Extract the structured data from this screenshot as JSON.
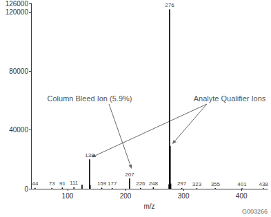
{
  "chart_data": {
    "type": "bar",
    "x_label": "m/z",
    "x": [
      44,
      73,
      91,
      111,
      125,
      138,
      139,
      159,
      177,
      207,
      226,
      248,
      275,
      276,
      277,
      278,
      297,
      323,
      355,
      401,
      438
    ],
    "values": [
      600,
      500,
      800,
      1000,
      2800,
      20000,
      2500,
      700,
      500,
      7000,
      600,
      900,
      3000,
      122000,
      29000,
      3500,
      500,
      400,
      400,
      300,
      300
    ],
    "labeled_peaks": [
      44,
      73,
      91,
      111,
      138,
      159,
      177,
      207,
      226,
      248,
      276,
      297,
      323,
      355,
      401,
      438
    ],
    "color": "#000000",
    "xlim": [
      37,
      445
    ],
    "xticks": [
      100,
      200,
      300,
      400
    ],
    "ylim": [
      0,
      126000
    ],
    "yticks": [
      0,
      40000,
      80000,
      120000
    ],
    "grid": false,
    "annotations": [
      {
        "text": "Column Bleed Ion (5.9%)",
        "targets": [
          207
        ]
      },
      {
        "text": "Analyte Qualifier Ions",
        "targets": [
          138,
          277
        ]
      }
    ],
    "footer": "G003266"
  }
}
